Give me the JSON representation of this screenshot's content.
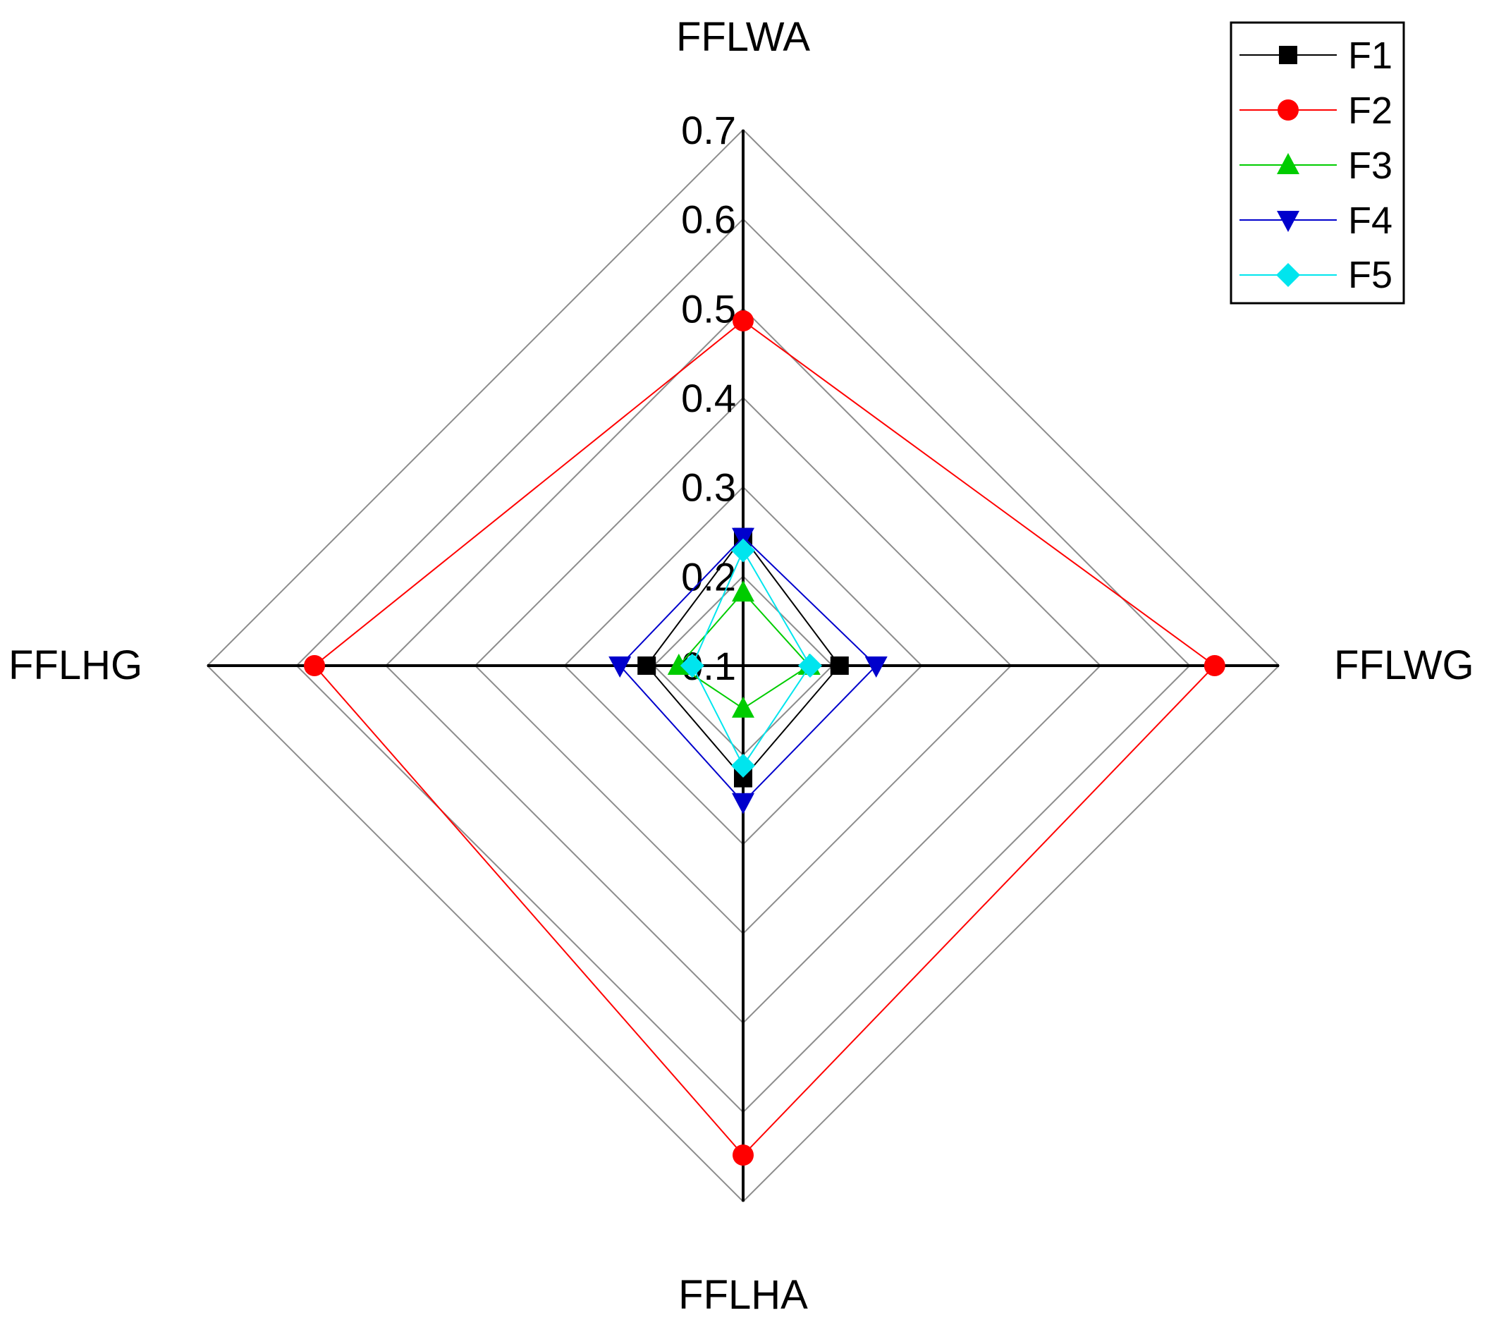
{
  "chart_data": {
    "type": "radar",
    "axes": [
      "FFLWA",
      "FFLWG",
      "FFLHA",
      "FFLHG"
    ],
    "radial_range": [
      0.1,
      0.7
    ],
    "ticks": [
      "0.1",
      "0.2",
      "0.3",
      "0.4",
      "0.5",
      "0.6",
      "0.7"
    ],
    "tick_values": [
      0.1,
      0.2,
      0.3,
      0.4,
      0.5,
      0.6,
      0.7
    ],
    "grid": true,
    "legend_position": "top-right",
    "series": [
      {
        "name": "F1",
        "color": "#000000",
        "marker": "square",
        "values": [
          0.244,
          0.208,
          0.226,
          0.208
        ]
      },
      {
        "name": "F2",
        "color": "#ff0000",
        "marker": "circle",
        "values": [
          0.486,
          0.628,
          0.648,
          0.58
        ]
      },
      {
        "name": "F3",
        "color": "#00cc00",
        "marker": "triangle-up",
        "values": [
          0.182,
          0.174,
          0.148,
          0.172
        ]
      },
      {
        "name": "F4",
        "color": "#0000cc",
        "marker": "triangle-down",
        "values": [
          0.244,
          0.249,
          0.253,
          0.238
        ]
      },
      {
        "name": "F5",
        "color": "#00e5ee",
        "marker": "diamond",
        "values": [
          0.229,
          0.175,
          0.212,
          0.157
        ]
      }
    ]
  }
}
